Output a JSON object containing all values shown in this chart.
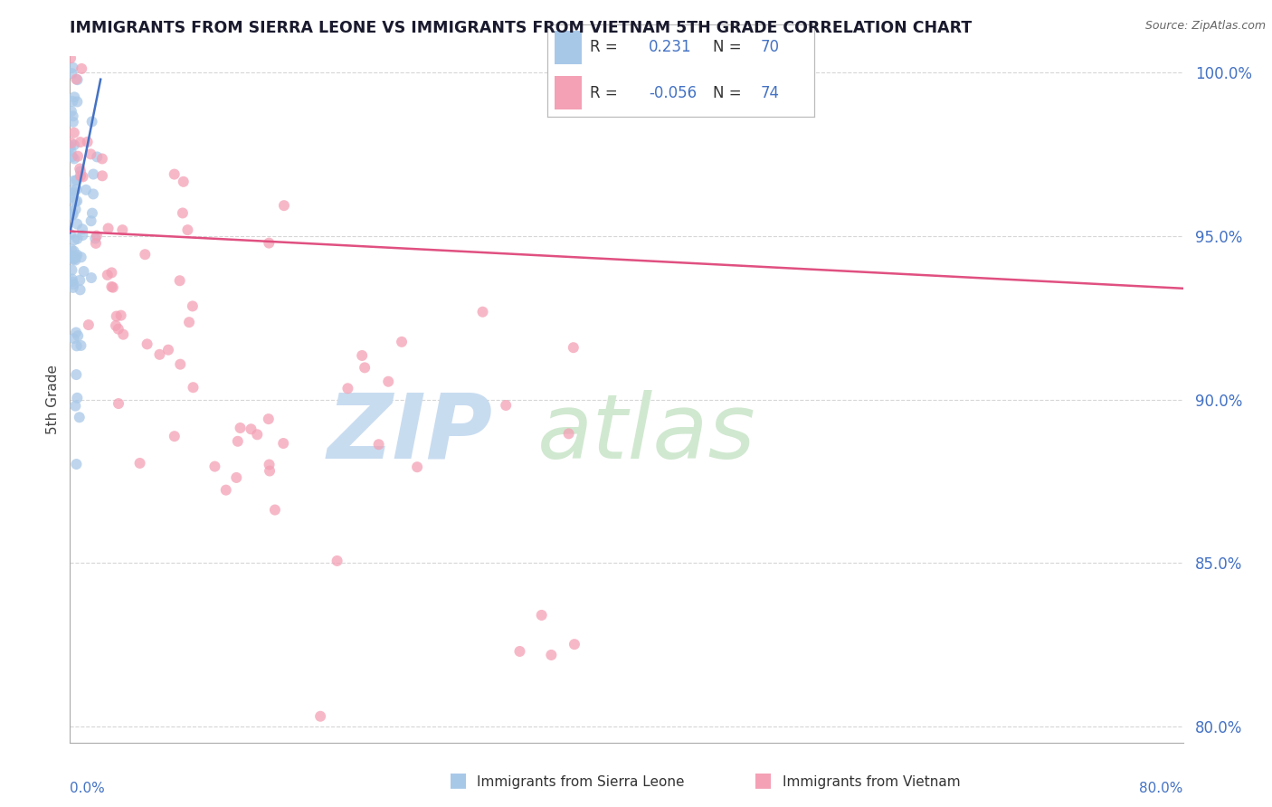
{
  "title": "IMMIGRANTS FROM SIERRA LEONE VS IMMIGRANTS FROM VIETNAM 5TH GRADE CORRELATION CHART",
  "source": "Source: ZipAtlas.com",
  "ylabel": "5th Grade",
  "legend1_R": "0.231",
  "legend1_N": "70",
  "legend2_R": "-0.056",
  "legend2_N": "74",
  "color_blue": "#a8c8e8",
  "color_pink": "#f4a0b5",
  "color_blue_line": "#4472c4",
  "color_pink_line": "#e05080",
  "color_text_blue": "#4472c4",
  "color_title": "#1a1a2e",
  "color_source": "#666666",
  "color_grid": "#cccccc",
  "color_axis": "#aaaaaa",
  "color_ylabel": "#444444",
  "color_ytick": "#4472c4",
  "watermark_zip_color": "#c8dcf0",
  "watermark_atlas_color": "#d0e8d0",
  "xmin": 0.0,
  "xmax": 0.8,
  "ymin": 0.795,
  "ymax": 1.005,
  "ytick_vals": [
    0.8,
    0.85,
    0.9,
    0.95,
    1.0
  ],
  "ytick_labels": [
    "80.0%",
    "85.0%",
    "90.0%",
    "95.0%",
    "100.0%"
  ],
  "pink_trend_y0": 0.9515,
  "pink_trend_y1": 0.934,
  "blue_trend_x0": 0.0,
  "blue_trend_x1": 0.022,
  "blue_trend_y0": 0.951,
  "blue_trend_y1": 0.998,
  "legend_R_color": "#333333",
  "legend_val_color": "#4472c4",
  "bottom_legend_color": "#333333"
}
